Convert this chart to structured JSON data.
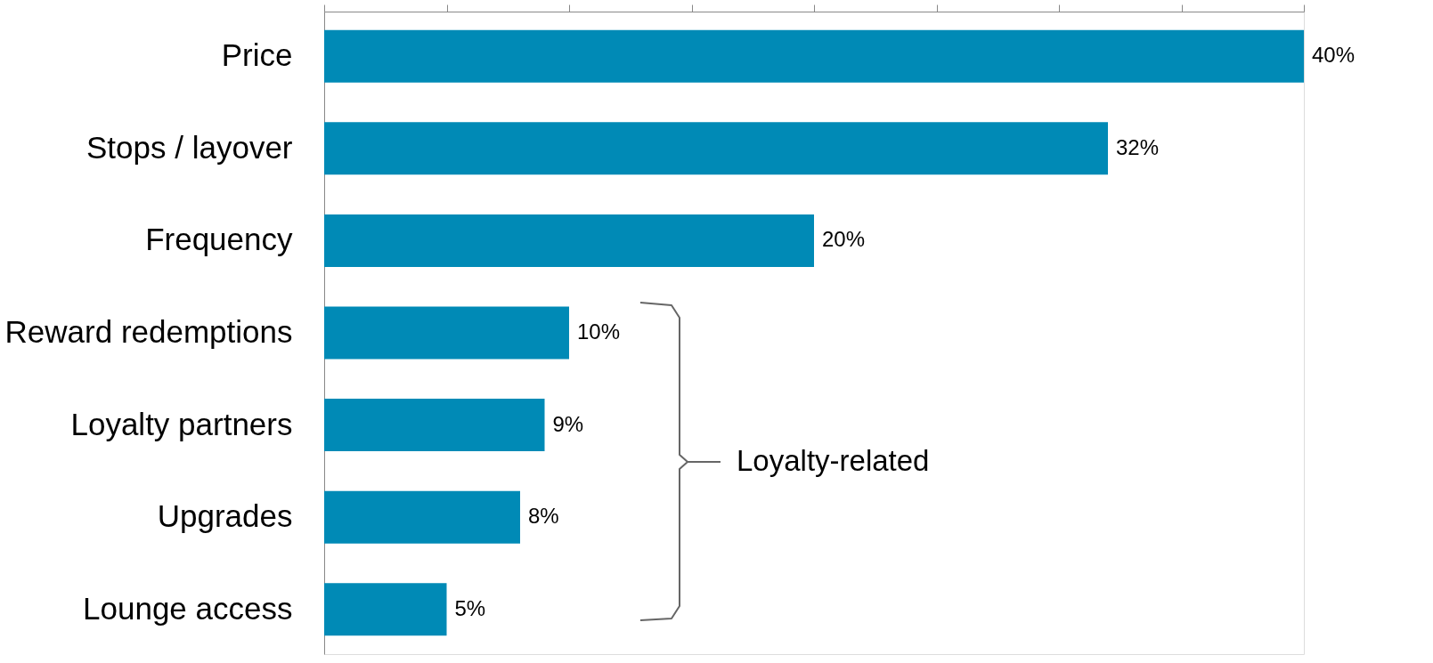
{
  "chart_data": {
    "type": "bar",
    "orientation": "horizontal",
    "categories": [
      "Price",
      "Stops / layover",
      "Frequency",
      "Reward redemptions",
      "Loyalty partners",
      "Upgrades",
      "Lounge access"
    ],
    "values": [
      40,
      32,
      20,
      10,
      9,
      8,
      5
    ],
    "value_labels": [
      "40%",
      "32%",
      "20%",
      "10%",
      "9%",
      "8%",
      "5%"
    ],
    "color": "#008ab6",
    "xlim": [
      0,
      40
    ],
    "xticks": [
      {
        "value": 0,
        "label": null
      },
      {
        "value": 5,
        "label": null
      },
      {
        "value": 10,
        "label": null
      },
      {
        "value": 15,
        "label": null
      },
      {
        "value": 20,
        "label": null
      },
      {
        "value": 25,
        "label": null
      },
      {
        "value": 30,
        "label": null
      },
      {
        "value": 35,
        "label": null
      },
      {
        "value": 40,
        "label": null
      }
    ],
    "tick_labels": "y",
    "annotations": [
      "Loyalty-related"
    ]
  }
}
